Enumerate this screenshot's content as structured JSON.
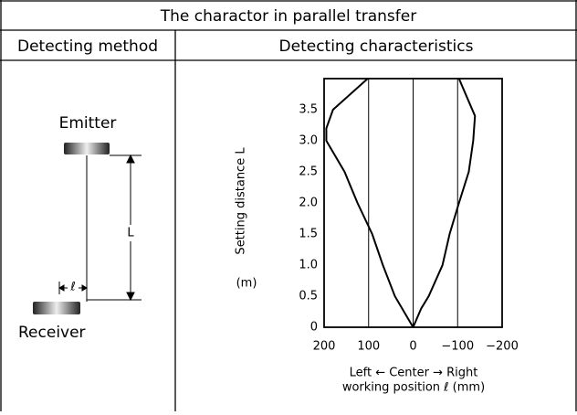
{
  "header": {
    "title": "The charactor in parallel transfer"
  },
  "table": {
    "columns": [
      "Detecting method",
      "Detecting characteristics"
    ]
  },
  "diagram": {
    "emitter": "Emitter",
    "receiver": "Receiver",
    "distance_label": "L",
    "offset_label": "ℓ"
  },
  "chart_data": {
    "type": "line",
    "y_label": "Setting distance L",
    "y_unit": "(m)",
    "x_label": [
      "Left ← Center → Right",
      "working position ℓ  (mm)"
    ],
    "series": [
      {
        "color": "#000000",
        "x": [
          0,
          41,
          68,
          92,
          125,
          154,
          195,
          195,
          180,
          102
        ],
        "values": [
          0,
          0.5,
          1.0,
          1.5,
          2.0,
          2.5,
          3.0,
          3.2,
          3.5,
          4.0
        ]
      },
      {
        "color": "#000000",
        "x": [
          0,
          -18,
          -35,
          -66,
          -82,
          -103,
          -125,
          -135,
          -139,
          -103
        ],
        "values": [
          0,
          0.3,
          0.5,
          1.0,
          1.5,
          2.0,
          2.5,
          3.0,
          3.4,
          4.0
        ]
      }
    ],
    "xlim": [
      200,
      -200
    ],
    "ylim": [
      0,
      4
    ],
    "xticks": [
      200,
      100,
      0,
      {
        "value": -100,
        "label": "−100"
      },
      {
        "value": -200,
        "label": "−200"
      }
    ],
    "yticks": [
      0,
      0.5,
      {
        "value": 1,
        "label": "1.0"
      },
      1.5,
      {
        "value": 2,
        "label": "2.0"
      },
      2.5,
      {
        "value": 3,
        "label": "3.0"
      },
      3.5
    ],
    "grid_x": [
      100,
      0,
      -100
    ]
  }
}
